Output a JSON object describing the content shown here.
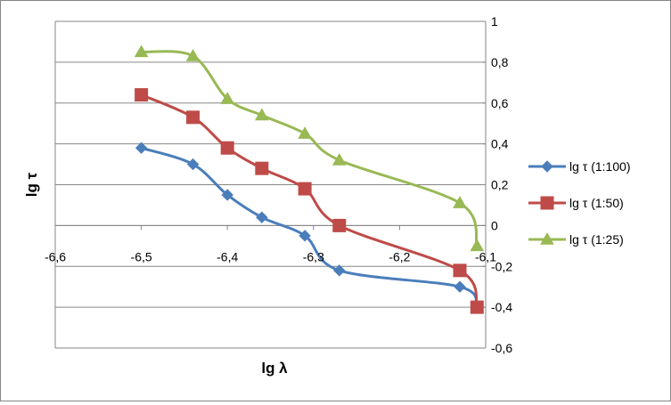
{
  "chart_data": {
    "type": "line",
    "xlabel": "lg λ",
    "ylabel": "lg τ",
    "xlim": [
      -6.6,
      -6.1
    ],
    "ylim": [
      -0.6,
      1
    ],
    "x_ticks": [
      -6.6,
      -6.5,
      -6.4,
      -6.3,
      -6.2,
      -6.1
    ],
    "y_ticks": [
      -0.6,
      -0.4,
      -0.2,
      0,
      0.2,
      0.4,
      0.6,
      0.8,
      1
    ],
    "x_tick_labels": [
      "-6,6",
      "-6,5",
      "-6,4",
      "-6,3",
      "-6,2",
      "-6,1"
    ],
    "y_tick_labels": [
      "-0,6",
      "-0,4",
      "-0,2",
      "0",
      "0,2",
      "0,4",
      "0,6",
      "0,8",
      "1"
    ],
    "grid": "horizontal",
    "smooth": true,
    "legend_position": "right",
    "series": [
      {
        "name": "lg τ (1:100)",
        "color": "#4a7ebb",
        "marker": "diamond",
        "points": [
          [
            -6.5,
            0.38
          ],
          [
            -6.44,
            0.3
          ],
          [
            -6.4,
            0.15
          ],
          [
            -6.36,
            0.04
          ],
          [
            -6.31,
            -0.05
          ],
          [
            -6.27,
            -0.22
          ],
          [
            -6.13,
            -0.3
          ],
          [
            -6.11,
            -0.4
          ]
        ]
      },
      {
        "name": "lg τ (1:50)",
        "color": "#be4b48",
        "marker": "square",
        "points": [
          [
            -6.5,
            0.64
          ],
          [
            -6.44,
            0.53
          ],
          [
            -6.4,
            0.38
          ],
          [
            -6.36,
            0.28
          ],
          [
            -6.31,
            0.18
          ],
          [
            -6.27,
            0.0
          ],
          [
            -6.13,
            -0.22
          ],
          [
            -6.11,
            -0.4
          ]
        ]
      },
      {
        "name": "lg τ (1:25)",
        "color": "#98b954",
        "marker": "triangle",
        "points": [
          [
            -6.5,
            0.85
          ],
          [
            -6.44,
            0.83
          ],
          [
            -6.4,
            0.62
          ],
          [
            -6.36,
            0.54
          ],
          [
            -6.31,
            0.45
          ],
          [
            -6.27,
            0.32
          ],
          [
            -6.13,
            0.11
          ],
          [
            -6.11,
            -0.1
          ]
        ]
      }
    ]
  }
}
